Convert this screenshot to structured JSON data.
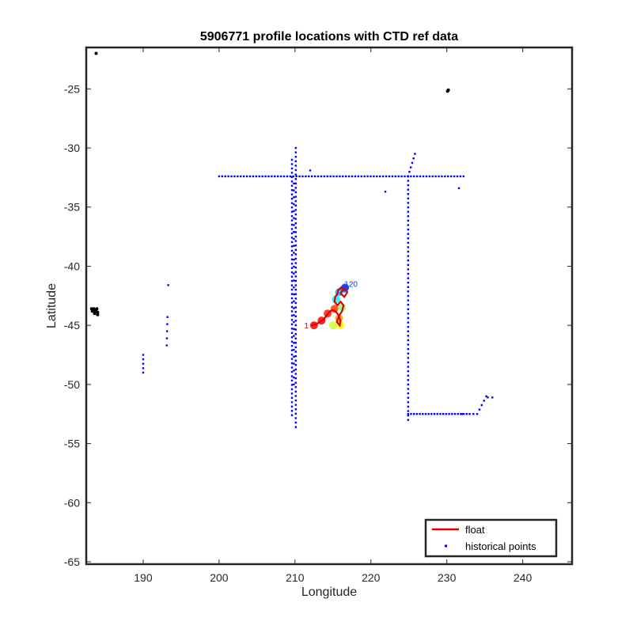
{
  "chart_data": {
    "type": "scatter",
    "title": "5906771 profile locations with CTD ref data",
    "xlabel": "Longitude",
    "ylabel": "Latitude",
    "xlim": [
      182.5,
      246.5
    ],
    "ylim": [
      -65.2,
      -21.5
    ],
    "xticks": [
      190,
      200,
      210,
      220,
      230,
      240
    ],
    "yticks": [
      -25,
      -30,
      -35,
      -40,
      -45,
      -50,
      -55,
      -60,
      -65
    ],
    "grid": false,
    "legend_position": "bottom-right",
    "legend": [
      {
        "label": "float",
        "style": "line",
        "color": "#dd0000"
      },
      {
        "label": "historical points",
        "style": "dot",
        "color": "#0000ff"
      }
    ],
    "coastline_color": "#000000",
    "float_color": "#dd0000",
    "historical_color": "#0000ff",
    "float_start_label": "1",
    "float_end_label": "120",
    "series": [
      {
        "name": "float",
        "points": [
          [
            212.2,
            -45.0
          ],
          [
            212.8,
            -44.9
          ],
          [
            213.3,
            -44.7
          ],
          [
            213.8,
            -44.5
          ],
          [
            214.1,
            -44.2
          ],
          [
            214.5,
            -43.9
          ],
          [
            214.9,
            -43.7
          ],
          [
            215.3,
            -43.8
          ],
          [
            215.7,
            -44.1
          ],
          [
            216.0,
            -44.6
          ],
          [
            215.9,
            -45.0
          ],
          [
            215.5,
            -44.7
          ],
          [
            215.8,
            -44.2
          ],
          [
            216.2,
            -43.8
          ],
          [
            216.4,
            -43.3
          ],
          [
            216.0,
            -43.0
          ],
          [
            215.6,
            -43.3
          ],
          [
            215.2,
            -43.0
          ],
          [
            215.3,
            -42.6
          ],
          [
            215.6,
            -42.3
          ],
          [
            215.7,
            -42.0
          ],
          [
            216.1,
            -41.8
          ],
          [
            216.6,
            -41.9
          ],
          [
            216.9,
            -42.2
          ],
          [
            216.5,
            -42.6
          ],
          [
            216.0,
            -42.3
          ],
          [
            216.3,
            -42.0
          ]
        ]
      },
      {
        "name": "historical points",
        "segments": [
          {
            "x0": 200.0,
            "y0": -32.4,
            "x1": 232.2,
            "y1": -32.4,
            "n": 80
          },
          {
            "x0": 209.6,
            "y0": -31.0,
            "x1": 209.6,
            "y1": -52.6,
            "n": 60
          },
          {
            "x0": 210.1,
            "y0": -30.0,
            "x1": 210.1,
            "y1": -53.6,
            "n": 64
          },
          {
            "x0": 209.85,
            "y0": -33.0,
            "x1": 209.85,
            "y1": -50.0,
            "n": 30
          },
          {
            "x0": 224.9,
            "y0": -32.4,
            "x1": 224.9,
            "y1": -53.0,
            "n": 56
          },
          {
            "x0": 224.9,
            "y0": -32.4,
            "x1": 225.8,
            "y1": -30.5,
            "n": 6
          },
          {
            "x0": 224.9,
            "y0": -52.5,
            "x1": 233.0,
            "y1": -52.5,
            "n": 22
          },
          {
            "x0": 234.0,
            "y0": -52.5,
            "x1": 235.2,
            "y1": -51.0,
            "n": 5
          },
          {
            "x0": 190.0,
            "y0": -47.5,
            "x1": 190.0,
            "y1": -49.0,
            "n": 5
          },
          {
            "x0": 193.2,
            "y0": -44.3,
            "x1": 193.1,
            "y1": -46.7,
            "n": 5
          }
        ],
        "extra_points": [
          [
            193.3,
            -41.6
          ],
          [
            212.0,
            -31.9
          ],
          [
            221.9,
            -33.7
          ],
          [
            231.6,
            -33.4
          ],
          [
            236.0,
            -51.1
          ],
          [
            235.4,
            -51.1
          ],
          [
            232.0,
            -52.5
          ],
          [
            233.5,
            -52.5
          ]
        ]
      }
    ],
    "coastline_points": [
      [
        183.8,
        -22.0
      ],
      [
        230.2,
        -25.1
      ],
      [
        230.1,
        -25.2
      ],
      [
        183.2,
        -43.6
      ],
      [
        183.5,
        -43.6
      ],
      [
        183.9,
        -43.6
      ],
      [
        183.3,
        -43.8
      ],
      [
        183.7,
        -43.8
      ],
      [
        184.0,
        -43.9
      ],
      [
        183.6,
        -44.0
      ],
      [
        184.0,
        -44.1
      ],
      [
        183.8,
        -43.7
      ]
    ],
    "profile_markers": [
      {
        "x": 212.5,
        "y": -45.0,
        "color": "#ff0000",
        "label": "1"
      },
      {
        "x": 213.5,
        "y": -44.6,
        "color": "#ff0000",
        "label": ""
      },
      {
        "x": 214.3,
        "y": -44.0,
        "color": "#ff2000",
        "label": ""
      },
      {
        "x": 215.2,
        "y": -43.6,
        "color": "#ff4000",
        "label": ""
      },
      {
        "x": 215.8,
        "y": -44.4,
        "color": "#ffa000",
        "label": ""
      },
      {
        "x": 216.0,
        "y": -45.0,
        "color": "#ffff00",
        "label": ""
      },
      {
        "x": 215.0,
        "y": -45.0,
        "color": "#ccff33",
        "label": ""
      },
      {
        "x": 216.2,
        "y": -43.5,
        "color": "#80ff80",
        "label": ""
      },
      {
        "x": 215.4,
        "y": -42.8,
        "color": "#00ffff",
        "label": ""
      },
      {
        "x": 215.8,
        "y": -42.2,
        "color": "#00c0ff",
        "label": ""
      },
      {
        "x": 216.5,
        "y": -41.9,
        "color": "#0080ff",
        "label": ""
      },
      {
        "x": 216.6,
        "y": -41.8,
        "color": "#0040ff",
        "label": "120"
      }
    ]
  }
}
